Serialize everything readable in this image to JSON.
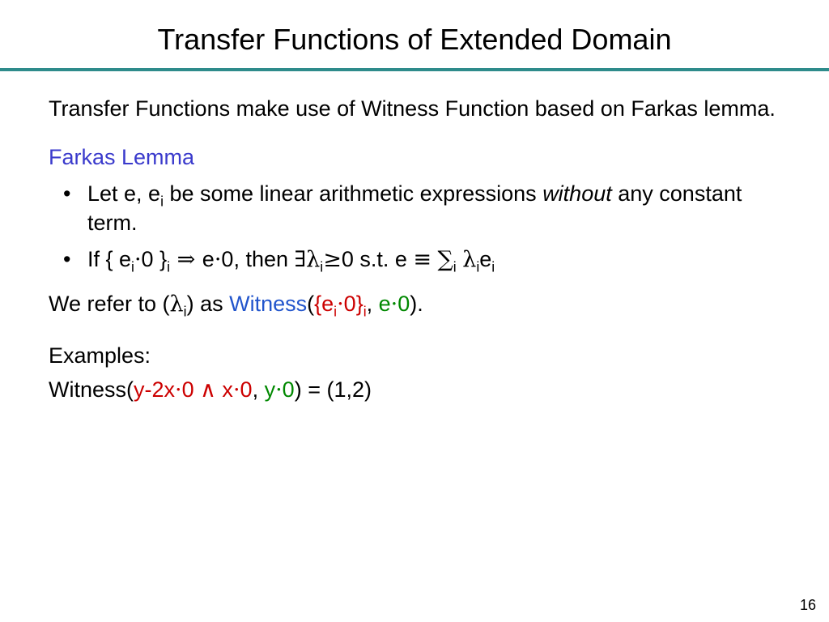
{
  "colors": {
    "divider": "#2e8b8b",
    "subhead": "#3a3acc",
    "red": "#cc0000",
    "green": "#008800",
    "bluew": "#2255cc",
    "text": "#000000",
    "background": "#ffffff"
  },
  "title": "Transfer Functions of Extended Domain",
  "intro": "Transfer Functions make use of Witness Function based on Farkas lemma.",
  "subhead": "Farkas Lemma",
  "bullets": {
    "b1": {
      "p1": "Let e, e",
      "sub1": "i",
      "p2": " be some linear arithmetic expressions ",
      "without": "without",
      "p3": " any constant term."
    },
    "b2": {
      "p1": "If  { e",
      "sub1": "i",
      "le1": "·",
      "p2": "0 }",
      "sub2": "i",
      "impl": " ⇒ ",
      "p3": "e",
      "le2": "·",
      "p4": "0, then ",
      "exists": "∃",
      "lam1": "λ",
      "sub3": "i",
      "ge": "≥",
      "p5": "0 s.t. e ",
      "equiv": "≡",
      "sp": " ",
      "sigma": "∑",
      "sub4": "i",
      "sp2": " ",
      "lam2": "λ",
      "sub5": "i",
      "p6": "e",
      "sub6": "i"
    }
  },
  "refline": {
    "p1": "We refer to (",
    "lam": "λ",
    "sub1": "i",
    "p2": ") as ",
    "witness": "Witness",
    "p3": "(",
    "r1": "{e",
    "rsub": "i",
    "rle": "·",
    "r2": "0}",
    "rsub2": "i",
    "comma": ", ",
    "g1": "e",
    "gle": "·",
    "g2": "0",
    "p4": ")."
  },
  "examples_label": "Examples:",
  "ex": {
    "p1": "Witness(",
    "r1": "y-2x",
    "rle": "·",
    "r2": "0 ",
    "and": "∧",
    "r3": " x",
    "rle2": "·",
    "r4": "0",
    "comma": ", ",
    "g1": "y",
    "gle": "·",
    "g2": "0",
    "p2": ") = (1,2)"
  },
  "pagenum": "16"
}
